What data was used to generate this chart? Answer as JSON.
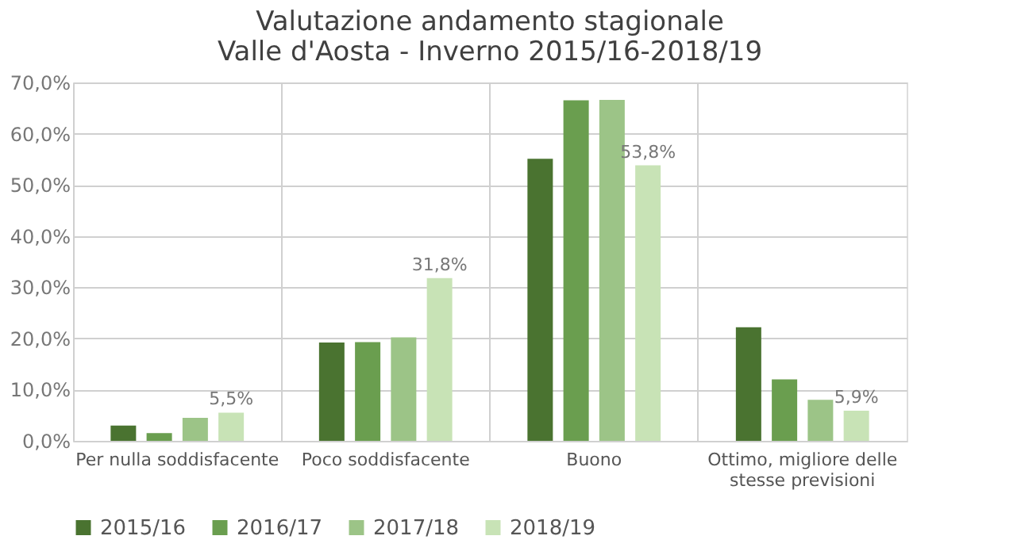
{
  "chart_data": {
    "type": "bar",
    "title": "Valutazione andamento stagionale\nValle d'Aosta - Inverno 2015/16-2018/19",
    "categories": [
      "Per nulla soddisfacente",
      "Poco soddisfacente",
      "Buono",
      "Ottimo, migliore delle stesse previsioni"
    ],
    "series": [
      {
        "name": "2015/16",
        "color": "#4a7330",
        "values": [
          3.0,
          19.2,
          55.1,
          22.2
        ]
      },
      {
        "name": "2016/17",
        "color": "#6a9e4f",
        "values": [
          1.5,
          19.3,
          66.5,
          12.0
        ]
      },
      {
        "name": "2017/18",
        "color": "#9cc487",
        "values": [
          4.5,
          20.2,
          66.6,
          8.0
        ]
      },
      {
        "name": "2018/19",
        "color": "#c8e3b6",
        "values": [
          5.5,
          31.8,
          53.8,
          5.9
        ],
        "value_labels": [
          "5,5%",
          "31,8%",
          "53,8%",
          "5,9%"
        ]
      }
    ],
    "ylim": [
      0,
      70
    ],
    "yticks": [
      {
        "value": 0,
        "label": "0,0%"
      },
      {
        "value": 10,
        "label": "10,0%"
      },
      {
        "value": 20,
        "label": "20,0%"
      },
      {
        "value": 30,
        "label": "30,0%"
      },
      {
        "value": 40,
        "label": "40,0%"
      },
      {
        "value": 50,
        "label": "50,0%"
      },
      {
        "value": 60,
        "label": "60,0%"
      },
      {
        "value": 70,
        "label": "70,0%"
      }
    ],
    "grid": true,
    "legend": "bottom"
  }
}
